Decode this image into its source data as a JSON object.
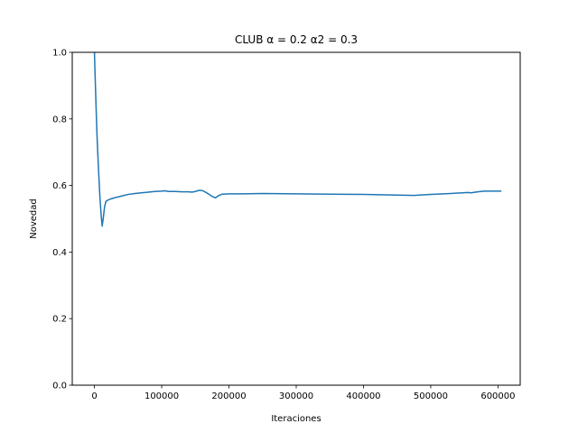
{
  "chart_data": {
    "type": "line",
    "title": "CLUB α =  0.2 α2 = 0.3",
    "xlabel": "Iteraciones",
    "ylabel": "Novedad",
    "xlim": [
      -33000,
      633000
    ],
    "ylim": [
      0.0,
      1.0
    ],
    "xticks": [
      0,
      100000,
      200000,
      300000,
      400000,
      500000,
      600000
    ],
    "xtick_labels": [
      "0",
      "100000",
      "200000",
      "300000",
      "400000",
      "500000",
      "600000"
    ],
    "yticks": [
      0.0,
      0.2,
      0.4,
      0.6,
      0.8,
      1.0
    ],
    "ytick_labels": [
      "0.0",
      "0.2",
      "0.4",
      "0.6",
      "0.8",
      "1.0"
    ],
    "grid": false,
    "series": [
      {
        "color": "#1f77b4",
        "x": [
          0,
          1000,
          2500,
          4000,
          6000,
          8000,
          10000,
          11500,
          13000,
          15000,
          17000,
          20000,
          25000,
          30000,
          40000,
          50000,
          60000,
          70000,
          80000,
          90000,
          100000,
          105000,
          110000,
          120000,
          130000,
          140000,
          145000,
          150000,
          155000,
          160000,
          165000,
          170000,
          175000,
          180000,
          185000,
          190000,
          200000,
          220000,
          250000,
          300000,
          350000,
          400000,
          450000,
          475000,
          500000,
          530000,
          555000,
          560000,
          570000,
          580000,
          600000,
          605000
        ],
        "y": [
          1.0,
          0.93,
          0.83,
          0.74,
          0.65,
          0.57,
          0.51,
          0.478,
          0.5,
          0.535,
          0.552,
          0.556,
          0.56,
          0.563,
          0.568,
          0.573,
          0.576,
          0.578,
          0.58,
          0.582,
          0.583,
          0.584,
          0.582,
          0.582,
          0.581,
          0.581,
          0.58,
          0.582,
          0.585,
          0.585,
          0.58,
          0.574,
          0.567,
          0.563,
          0.57,
          0.574,
          0.575,
          0.575,
          0.576,
          0.575,
          0.574,
          0.573,
          0.571,
          0.57,
          0.573,
          0.576,
          0.579,
          0.578,
          0.581,
          0.583,
          0.583,
          0.583
        ]
      }
    ]
  }
}
